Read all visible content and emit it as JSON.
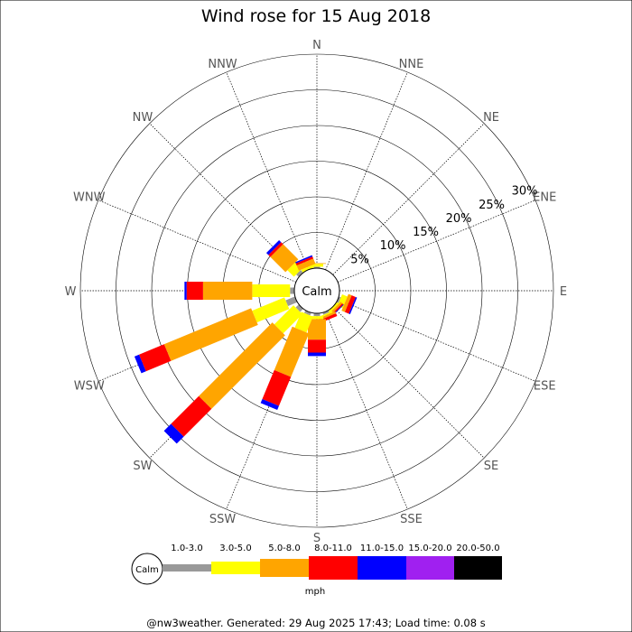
{
  "chart_data": {
    "type": "wind-rose",
    "title": "Wind rose for 15 Aug 2018",
    "directions": [
      "N",
      "NNE",
      "NE",
      "ENE",
      "E",
      "ESE",
      "SE",
      "SSE",
      "S",
      "SSW",
      "SW",
      "WSW",
      "W",
      "WNW",
      "NW",
      "NNW"
    ],
    "radial_ticks": [
      5,
      10,
      15,
      20,
      25,
      30
    ],
    "radial_tick_labels": [
      "5%",
      "10%",
      "15%",
      "20%",
      "25%",
      "30%"
    ],
    "rmax": 30,
    "calm_label": "Calm",
    "unit": "mph",
    "bins": [
      {
        "label": "1.0-3.0",
        "color": "#999999"
      },
      {
        "label": "3.0-5.0",
        "color": "#ffff00"
      },
      {
        "label": "5.0-8.0",
        "color": "#ffa500"
      },
      {
        "label": "8.0-11.0",
        "color": "#ff0000"
      },
      {
        "label": "11.0-15.0",
        "color": "#0000ff"
      },
      {
        "label": "15.0-20.0",
        "color": "#a020f0"
      },
      {
        "label": "20.0-50.0",
        "color": "#000000"
      }
    ],
    "series": [
      {
        "direction": "N",
        "values": [
          0.2,
          0.4,
          0.1,
          0,
          0,
          0,
          0
        ]
      },
      {
        "direction": "NNE",
        "values": [
          0,
          0,
          0,
          0,
          0,
          0,
          0
        ]
      },
      {
        "direction": "NE",
        "values": [
          0,
          0,
          0,
          0,
          0,
          0,
          0
        ]
      },
      {
        "direction": "ENE",
        "values": [
          0,
          0,
          0,
          0,
          0,
          0,
          0
        ]
      },
      {
        "direction": "E",
        "values": [
          0,
          0,
          0,
          0,
          0,
          0,
          0
        ]
      },
      {
        "direction": "ESE",
        "values": [
          0.3,
          0.8,
          0.5,
          0.6,
          0.2,
          0,
          0
        ]
      },
      {
        "direction": "SE",
        "values": [
          0,
          0.3,
          0.3,
          0.2,
          0.1,
          0,
          0
        ]
      },
      {
        "direction": "SSE",
        "values": [
          0.3,
          0.2,
          0.3,
          0.4,
          0,
          0,
          0
        ]
      },
      {
        "direction": "S",
        "values": [
          0.4,
          0.4,
          2.9,
          1.8,
          0.5,
          0,
          0
        ]
      },
      {
        "direction": "SSW",
        "values": [
          0.4,
          2.4,
          6.6,
          4.4,
          0.6,
          0,
          0
        ]
      },
      {
        "direction": "SW",
        "values": [
          0.6,
          3.8,
          14.6,
          5.5,
          1.4,
          0,
          0
        ]
      },
      {
        "direction": "WSW",
        "values": [
          1.4,
          4.9,
          13.2,
          3.8,
          0.7,
          0,
          0
        ]
      },
      {
        "direction": "W",
        "values": [
          0.6,
          5.3,
          6.9,
          2.3,
          0.3,
          0,
          0
        ]
      },
      {
        "direction": "WNW",
        "values": [
          0,
          0,
          0,
          0,
          0,
          0,
          0
        ]
      },
      {
        "direction": "NW",
        "values": [
          0.5,
          1.3,
          3.0,
          0.4,
          0.4,
          0,
          0
        ]
      },
      {
        "direction": "NNW",
        "values": [
          0,
          0.4,
          0.8,
          0.3,
          0.2,
          0,
          0
        ]
      }
    ]
  },
  "footer": "@nw3weather. Generated: 29 Aug 2025 17:43; Load time: 0.08 s"
}
